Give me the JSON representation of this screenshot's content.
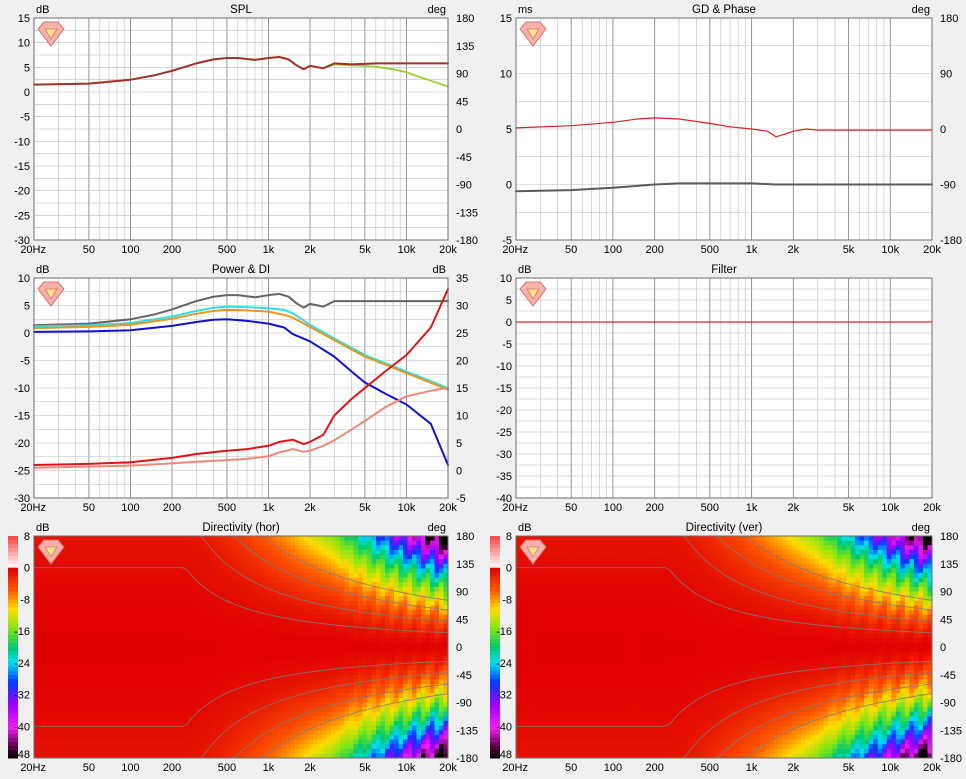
{
  "colors": {
    "background": "#f0f0f0",
    "plot_background": "#ffffff",
    "grid": "#bdbdbd",
    "grid_major": "#8a8a8a",
    "logo": "#e07070"
  },
  "x_axis": {
    "scale": "log",
    "range_hz": [
      20,
      20000
    ],
    "tick_values": [
      20,
      50,
      100,
      200,
      500,
      1000,
      2000,
      5000,
      10000,
      20000
    ],
    "tick_labels": [
      "20Hz",
      "50",
      "100",
      "200",
      "500",
      "1k",
      "2k",
      "5k",
      "10k",
      "20k"
    ]
  },
  "chart_data": [
    {
      "id": "spl",
      "type": "line",
      "title": "SPL",
      "ylabel_left": "dB",
      "ylabel_right": "deg",
      "ylim": [
        -30,
        15
      ],
      "yticks": [
        15,
        10,
        5,
        0,
        -5,
        -10,
        -15,
        -20,
        -25,
        -30
      ],
      "ylim_right": [
        -180,
        180
      ],
      "yticks_right": [
        180,
        135,
        90,
        45,
        0,
        -45,
        -90,
        -135,
        -180
      ],
      "grid": true,
      "series": [
        {
          "color": "#9acd32",
          "axis": "left",
          "width": 1.8,
          "x": [
            20,
            50,
            100,
            150,
            200,
            300,
            400,
            500,
            600,
            800,
            1000,
            1200,
            1400,
            1600,
            1800,
            2000,
            2500,
            3000,
            4000,
            5000,
            6000,
            8000,
            10000,
            12000,
            15000,
            20000
          ],
          "y": [
            1.5,
            1.7,
            2.5,
            3.4,
            4.3,
            5.8,
            6.6,
            6.9,
            6.9,
            6.5,
            6.9,
            7.1,
            6.6,
            5.4,
            4.6,
            5.3,
            4.8,
            5.6,
            5.4,
            5.3,
            5.1,
            4.6,
            4.0,
            3.2,
            2.3,
            1.1
          ]
        },
        {
          "color": "#a0322d",
          "axis": "left",
          "width": 2,
          "x": [
            20,
            50,
            100,
            150,
            200,
            300,
            400,
            500,
            600,
            800,
            1000,
            1200,
            1400,
            1600,
            1800,
            2000,
            2500,
            3000,
            4000,
            5000,
            6000,
            8000,
            10000,
            12000,
            15000,
            20000
          ],
          "y": [
            1.5,
            1.7,
            2.5,
            3.4,
            4.3,
            5.8,
            6.6,
            6.9,
            6.9,
            6.5,
            6.9,
            7.1,
            6.6,
            5.4,
            4.6,
            5.3,
            4.8,
            5.8,
            5.6,
            5.7,
            5.8,
            5.8,
            5.8,
            5.8,
            5.8,
            5.8
          ]
        }
      ]
    },
    {
      "id": "gd_phase",
      "type": "line",
      "title": "GD & Phase",
      "ylabel_left": "ms",
      "ylabel_right": "deg",
      "ylim": [
        -5,
        15
      ],
      "yticks": [
        15,
        10,
        5,
        0,
        -5
      ],
      "ylim_right": [
        -180,
        180
      ],
      "yticks_right": [
        180,
        90,
        0,
        -90,
        -180
      ],
      "grid": true,
      "series": [
        {
          "color": "#e02020",
          "axis": "left",
          "width": 1.2,
          "x": [
            20,
            50,
            100,
            150,
            200,
            300,
            500,
            700,
            1000,
            1300,
            1500,
            1700,
            2000,
            2500,
            3000,
            5000,
            10000,
            20000
          ],
          "y": [
            5.1,
            5.3,
            5.6,
            5.9,
            6.0,
            5.9,
            5.5,
            5.2,
            5.0,
            4.8,
            4.3,
            4.5,
            4.8,
            5.0,
            4.9,
            4.9,
            4.9,
            4.9
          ]
        },
        {
          "color": "#5a5a5a",
          "axis": "left",
          "width": 2,
          "x": [
            20,
            50,
            100,
            200,
            300,
            500,
            700,
            1000,
            1500,
            2000,
            5000,
            10000,
            20000
          ],
          "y": [
            -0.6,
            -0.5,
            -0.3,
            0.0,
            0.1,
            0.1,
            0.1,
            0.1,
            0.0,
            0.0,
            0.0,
            0.0,
            0.0
          ]
        }
      ]
    },
    {
      "id": "power_di",
      "type": "line",
      "title": "Power & DI",
      "ylabel_left": "dB",
      "ylabel_right": "dB",
      "ylim": [
        -30,
        10
      ],
      "yticks": [
        10,
        5,
        0,
        -5,
        -10,
        -15,
        -20,
        -25,
        -30
      ],
      "ylim_right": [
        -5,
        35
      ],
      "yticks_right": [
        35,
        30,
        25,
        20,
        15,
        10,
        5,
        0,
        -5
      ],
      "grid": true,
      "series": [
        {
          "color": "#646464",
          "axis": "left",
          "width": 2,
          "x": [
            20,
            50,
            100,
            150,
            200,
            300,
            400,
            500,
            600,
            800,
            1000,
            1200,
            1400,
            1600,
            1800,
            2000,
            2500,
            3000,
            5000,
            10000,
            20000
          ],
          "y": [
            1.4,
            1.7,
            2.5,
            3.4,
            4.3,
            5.8,
            6.6,
            6.9,
            6.9,
            6.5,
            6.9,
            7.1,
            6.6,
            5.4,
            4.6,
            5.3,
            4.8,
            5.8,
            5.8,
            5.8,
            5.8
          ]
        },
        {
          "color": "#30e0e0",
          "axis": "left",
          "width": 2,
          "x": [
            20,
            50,
            100,
            200,
            300,
            400,
            500,
            700,
            1000,
            1300,
            1500,
            2000,
            3000,
            5000,
            10000,
            20000
          ],
          "y": [
            1.2,
            1.4,
            1.8,
            3.0,
            4.0,
            4.6,
            4.8,
            4.7,
            4.5,
            4.2,
            3.6,
            1.5,
            -1.0,
            -4.0,
            -7.0,
            -10.0
          ]
        },
        {
          "color": "#e8961e",
          "axis": "left",
          "width": 2,
          "x": [
            20,
            50,
            100,
            200,
            300,
            400,
            500,
            700,
            1000,
            1300,
            1500,
            2000,
            3000,
            5000,
            10000,
            20000
          ],
          "y": [
            0.9,
            1.1,
            1.5,
            2.6,
            3.5,
            4.0,
            4.2,
            4.1,
            3.9,
            3.3,
            2.8,
            1.1,
            -1.3,
            -4.3,
            -7.3,
            -10.3
          ]
        },
        {
          "color": "#1010d0",
          "axis": "left",
          "width": 2,
          "x": [
            20,
            50,
            100,
            200,
            300,
            400,
            500,
            700,
            1000,
            1300,
            1500,
            2000,
            3000,
            4000,
            5000,
            7000,
            10000,
            15000,
            20000
          ],
          "y": [
            0.2,
            0.3,
            0.5,
            1.3,
            2.0,
            2.4,
            2.5,
            2.2,
            1.7,
            1.0,
            -0.2,
            -1.5,
            -4.3,
            -7.0,
            -9.0,
            -11.0,
            -13.0,
            -16.5,
            -24.0
          ]
        },
        {
          "color": "#e01414",
          "axis": "right",
          "width": 2,
          "x": [
            20,
            50,
            100,
            200,
            300,
            500,
            700,
            1000,
            1200,
            1500,
            1800,
            2000,
            2500,
            3000,
            4000,
            5000,
            7000,
            10000,
            15000,
            20000
          ],
          "y": [
            1.0,
            1.2,
            1.5,
            2.3,
            3.0,
            3.6,
            3.9,
            4.5,
            5.2,
            5.6,
            4.8,
            5.2,
            6.5,
            10.0,
            13.0,
            15.0,
            18.0,
            21.0,
            26.0,
            33.0
          ]
        },
        {
          "color": "#f08878",
          "axis": "right",
          "width": 2,
          "x": [
            20,
            50,
            100,
            200,
            300,
            500,
            700,
            1000,
            1200,
            1500,
            1800,
            2000,
            2500,
            3000,
            5000,
            7000,
            10000,
            15000,
            20000
          ],
          "y": [
            0.5,
            0.7,
            0.9,
            1.3,
            1.6,
            1.9,
            2.1,
            2.6,
            3.3,
            3.9,
            3.4,
            3.6,
            4.5,
            5.5,
            9.0,
            11.5,
            13.5,
            14.5,
            15.0
          ]
        }
      ]
    },
    {
      "id": "filter",
      "type": "line",
      "title": "Filter",
      "ylabel_left": "dB",
      "ylabel_right": "",
      "ylim": [
        -40,
        10
      ],
      "yticks": [
        10,
        5,
        0,
        -5,
        -10,
        -15,
        -20,
        -25,
        -30,
        -35,
        -40
      ],
      "grid": true,
      "series": [
        {
          "color": "#e02020",
          "axis": "left",
          "width": 1.2,
          "x": [
            20,
            20000
          ],
          "y": [
            0,
            0
          ]
        }
      ]
    },
    {
      "id": "dir_hor",
      "type": "heatmap",
      "title": "Directivity (hor)",
      "ylabel_left": "dB",
      "ylabel_right": "deg",
      "ylim_right": [
        -180,
        180
      ],
      "yticks_right": [
        180,
        135,
        90,
        45,
        0,
        -45,
        -90,
        -135,
        -180
      ],
      "colorbar_range_db": [
        -48,
        8
      ],
      "colorbar_ticks": [
        8,
        0,
        -8,
        -16,
        -24,
        -32,
        -40,
        -48
      ]
    },
    {
      "id": "dir_ver",
      "type": "heatmap",
      "title": "Directivity (ver)",
      "ylabel_left": "dB",
      "ylabel_right": "deg",
      "ylim_right": [
        -180,
        180
      ],
      "yticks_right": [
        180,
        135,
        90,
        45,
        0,
        -45,
        -90,
        -135,
        -180
      ],
      "colorbar_range_db": [
        -48,
        8
      ],
      "colorbar_ticks": [
        8,
        0,
        -8,
        -16,
        -24,
        -32,
        -40,
        -48
      ]
    }
  ]
}
